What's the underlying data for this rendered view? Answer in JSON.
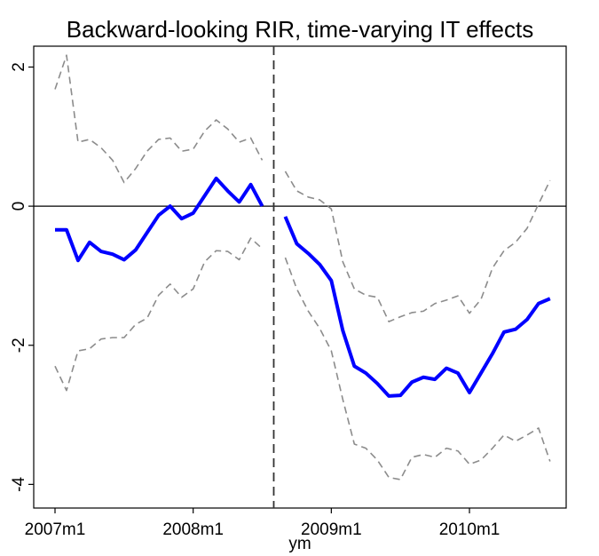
{
  "chart_data": {
    "type": "line",
    "title": "Backward-looking RIR, time-varying IT effects",
    "x_label": "ym",
    "x": [
      564,
      565,
      566,
      567,
      568,
      569,
      570,
      571,
      572,
      573,
      574,
      575,
      576,
      577,
      578,
      579,
      580,
      581,
      582,
      583,
      584,
      585,
      586,
      587,
      588,
      589,
      590,
      591,
      592,
      593,
      594,
      595,
      596,
      597,
      598,
      599,
      600,
      601,
      602,
      603,
      604,
      605,
      606,
      607
    ],
    "series": [
      {
        "color": "#0000ff",
        "style": "solid",
        "width": 4,
        "values": [
          -0.34,
          -0.34,
          -0.78,
          -0.52,
          -0.65,
          -0.69,
          -0.77,
          -0.63,
          -0.38,
          -0.13,
          0.0,
          -0.18,
          -0.1,
          0.15,
          0.4,
          0.22,
          0.06,
          0.31,
          0.0,
          null,
          -0.15,
          -0.54,
          -0.68,
          -0.84,
          -1.07,
          -1.79,
          -2.3,
          -2.4,
          -2.55,
          -2.73,
          -2.72,
          -2.53,
          -2.46,
          -2.49,
          -2.33,
          -2.4,
          -2.68,
          -2.4,
          -2.12,
          -1.81,
          -1.77,
          -1.63,
          -1.4,
          -1.33
        ]
      },
      {
        "color": "#8c8c8c",
        "style": "dashed",
        "width": 1.6,
        "values": [
          1.68,
          2.17,
          0.92,
          0.96,
          0.84,
          0.66,
          0.34,
          0.54,
          0.79,
          0.96,
          0.98,
          0.79,
          0.82,
          1.08,
          1.24,
          1.11,
          0.92,
          0.98,
          0.66,
          null,
          0.5,
          0.22,
          0.13,
          0.09,
          -0.04,
          -0.8,
          -1.19,
          -1.28,
          -1.31,
          -1.66,
          -1.59,
          -1.53,
          -1.51,
          -1.4,
          -1.35,
          -1.29,
          -1.54,
          -1.34,
          -0.89,
          -0.64,
          -0.52,
          -0.32,
          0.03,
          0.37
        ]
      },
      {
        "color": "#8c8c8c",
        "style": "dashed",
        "width": 1.6,
        "values": [
          -2.3,
          -2.65,
          -2.08,
          -2.05,
          -1.91,
          -1.89,
          -1.89,
          -1.7,
          -1.61,
          -1.28,
          -1.12,
          -1.31,
          -1.19,
          -0.8,
          -0.64,
          -0.65,
          -0.77,
          -0.46,
          -0.61,
          null,
          -0.74,
          -1.19,
          -1.51,
          -1.76,
          -2.08,
          -2.78,
          -3.42,
          -3.48,
          -3.65,
          -3.9,
          -3.93,
          -3.61,
          -3.57,
          -3.61,
          -3.48,
          -3.52,
          -3.71,
          -3.65,
          -3.48,
          -3.29,
          -3.38,
          -3.29,
          -3.19,
          -3.67
        ]
      }
    ],
    "xlim": [
      562.15,
      608.4
    ],
    "xticks": [
      {
        "value": 564,
        "label": "2007m1"
      },
      {
        "value": 576,
        "label": "2008m1"
      },
      {
        "value": 588,
        "label": "2009m1"
      },
      {
        "value": 600,
        "label": "2010m1"
      }
    ],
    "ylim": [
      -4.34,
      2.3
    ],
    "yticks": [
      2,
      0,
      -2,
      -4
    ],
    "yline": 0,
    "xline": 583
  }
}
